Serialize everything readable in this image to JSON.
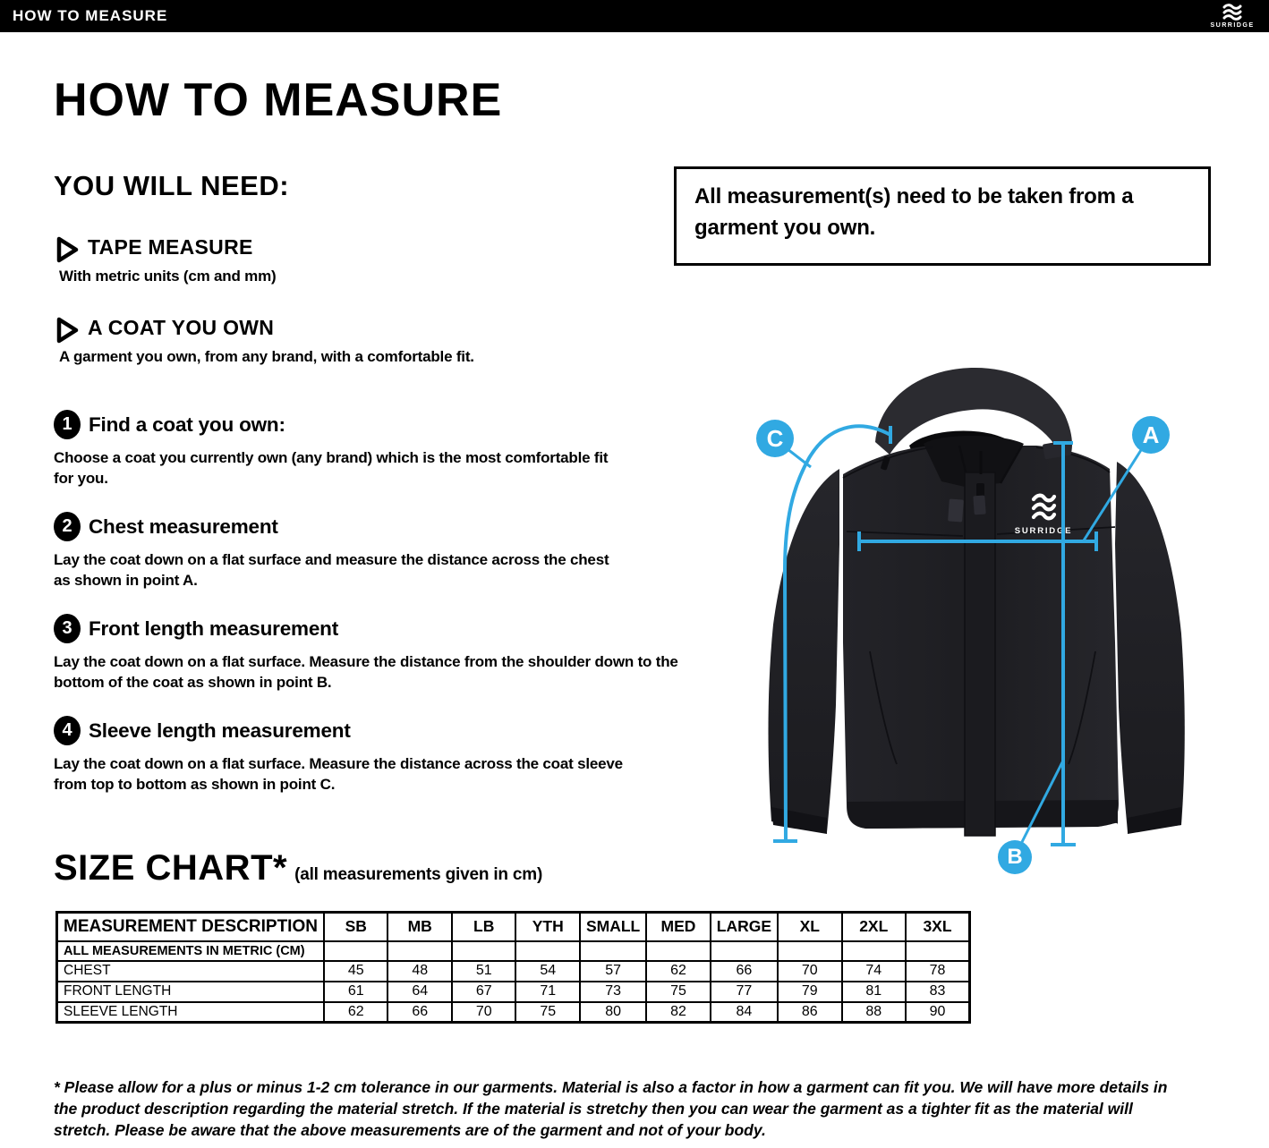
{
  "topbar": {
    "title": "HOW TO MEASURE",
    "brand": "SURRIDGE"
  },
  "heading": "HOW TO MEASURE",
  "you_will_need": {
    "title": "YOU WILL NEED:",
    "items": [
      {
        "label": "TAPE MEASURE",
        "description": "With metric units (cm and mm)"
      },
      {
        "label": "A COAT YOU OWN",
        "description": "A garment you own, from any brand, with a comfortable fit."
      }
    ]
  },
  "steps": [
    {
      "number": "1",
      "title": "Find a coat you own:",
      "body": "Choose a coat you currently own (any brand) which is the most comfortable fit for you."
    },
    {
      "number": "2",
      "title": "Chest measurement",
      "body": "Lay the coat down on a flat surface and measure the distance across the chest as shown in point A."
    },
    {
      "number": "3",
      "title": "Front length measurement",
      "body": "Lay the coat down on a flat surface. Measure the distance from the shoulder down to the bottom of the coat as shown in point B."
    },
    {
      "number": "4",
      "title": "Sleeve length measurement",
      "body": "Lay the coat down on a flat surface. Measure the distance across the coat sleeve from top to bottom as shown in point C."
    }
  ],
  "note": "All measurement(s) need to be taken from a garment you own.",
  "diagram": {
    "point_a": "A",
    "point_b": "B",
    "point_c": "C",
    "garment_brand": "SURRIDGE",
    "accent_color": "#31a9e2"
  },
  "size_chart": {
    "title": "SIZE CHART*",
    "subtitle": "(all measurements given in cm)",
    "columns": [
      "MEASUREMENT DESCRIPTION",
      "SB",
      "MB",
      "LB",
      "YTH",
      "SMALL",
      "MED",
      "LARGE",
      "XL",
      "2XL",
      "3XL"
    ],
    "metric_row_label": "ALL MEASUREMENTS IN METRIC (CM)",
    "rows": [
      {
        "label": "CHEST",
        "values": [
          "45",
          "48",
          "51",
          "54",
          "57",
          "62",
          "66",
          "70",
          "74",
          "78"
        ]
      },
      {
        "label": "FRONT LENGTH",
        "values": [
          "61",
          "64",
          "67",
          "71",
          "73",
          "75",
          "77",
          "79",
          "81",
          "83"
        ]
      },
      {
        "label": "SLEEVE LENGTH",
        "values": [
          "62",
          "66",
          "70",
          "75",
          "80",
          "82",
          "84",
          "86",
          "88",
          "90"
        ]
      }
    ]
  },
  "footnote": "* Please allow for a plus or minus 1-2 cm tolerance in our garments. Material is also a factor in how a garment can fit you. We will have more details in the product description regarding the material stretch.  If the material is stretchy then you can wear the garment as a tighter fit as the material will stretch.  Please be aware that the above measurements are of the garment and not of your body."
}
